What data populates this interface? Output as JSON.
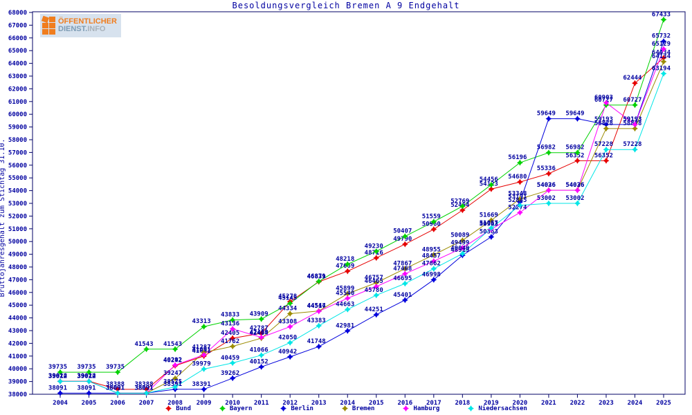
{
  "logo": {
    "line1": "ÖFFENTLICHER",
    "line2_strong": "DIENST.",
    "line2_light": "INFO"
  },
  "chart_data": {
    "type": "line",
    "title": "Besoldungsvergleich Bremen A 9 Endgehalt",
    "ylabel": "Bruttojahresgehalt zum Stichtag 31.10.",
    "xlabel": "",
    "ylim": [
      38000,
      68000
    ],
    "ytick_step": 1000,
    "grid": false,
    "legend_position": "bottom",
    "axis_color": "#000066",
    "label_color": "#0000a0",
    "x": [
      2004,
      2005,
      2006,
      2007,
      2008,
      2009,
      2010,
      2011,
      2012,
      2013,
      2014,
      2015,
      2016,
      2017,
      2018,
      2019,
      2020,
      2021,
      2022,
      2023,
      2024,
      2025
    ],
    "series": [
      {
        "name": "Bund",
        "color": "#e60000",
        "values": [
          39024,
          39024,
          38388,
          38388,
          40242,
          41001,
          42405,
          42787,
          45278,
          46839,
          47669,
          48716,
          49790,
          50960,
          52464,
          54123,
          54680,
          55336,
          56352,
          56352,
          62444,
          64434
        ]
      },
      {
        "name": "Bayern",
        "color": "#00d200",
        "values": [
          39735,
          39735,
          39735,
          41543,
          41543,
          43313,
          43833,
          43909,
          45145,
          46871,
          48218,
          49230,
          50407,
          51559,
          52769,
          54456,
          56196,
          56982,
          56982,
          60727,
          60727,
          67433
        ]
      },
      {
        "name": "Berlin",
        "color": "#0000dc",
        "values": [
          38091,
          38091,
          38091,
          38091,
          38391,
          38391,
          39262,
          40152,
          40942,
          41748,
          42981,
          44251,
          45401,
          46998,
          48919,
          50363,
          53101,
          59649,
          59649,
          59193,
          59193,
          65732
        ],
        "no_label_idx": [
          2,
          3
        ]
      },
      {
        "name": "Bremen",
        "color": "#9b8b00",
        "values": [
          39012,
          39012,
          38091,
          38091,
          39247,
          41287,
          41762,
          42404,
          44334,
          44544,
          45899,
          46757,
          47867,
          48955,
          50089,
          51669,
          53348,
          54036,
          54036,
          58878,
          58878,
          64134
        ]
      },
      {
        "name": "Hamburg",
        "color": "#ff00ff",
        "values": [
          39012,
          39012,
          38091,
          38091,
          40292,
          41091,
          43136,
          42469,
          43308,
          44517,
          45540,
          46465,
          47468,
          48457,
          49499,
          50963,
          52274,
          54026,
          54026,
          60903,
          59193,
          65129
        ]
      },
      {
        "name": "Niedersachsen",
        "color": "#00e6e6",
        "values": [
          39012,
          39012,
          38091,
          38091,
          38575,
          39979,
          40459,
          41066,
          42050,
          43383,
          44663,
          45780,
          46695,
          47862,
          49049,
          51057,
          52845,
          53002,
          53002,
          57228,
          57228,
          63194
        ]
      }
    ]
  }
}
